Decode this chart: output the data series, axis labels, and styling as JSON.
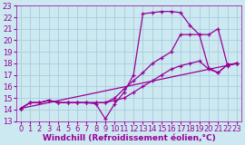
{
  "xlabel": "Windchill (Refroidissement éolien,°C)",
  "bg_color": "#cce8f0",
  "grid_color": "#aaccdd",
  "line_color": "#990099",
  "xlim": [
    -0.5,
    23.5
  ],
  "ylim": [
    13,
    23
  ],
  "xticks": [
    0,
    1,
    2,
    3,
    4,
    5,
    6,
    7,
    8,
    9,
    10,
    11,
    12,
    13,
    14,
    15,
    16,
    17,
    18,
    19,
    20,
    21,
    22,
    23
  ],
  "yticks": [
    13,
    14,
    15,
    16,
    17,
    18,
    19,
    20,
    21,
    22,
    23
  ],
  "series1_x": [
    0,
    1,
    2,
    3,
    4,
    5,
    6,
    7,
    8,
    9,
    10,
    11,
    12,
    13,
    14,
    15,
    16,
    17,
    18,
    19,
    20,
    21,
    22,
    23
  ],
  "series1_y": [
    14.1,
    14.6,
    14.6,
    14.8,
    14.6,
    14.6,
    14.6,
    14.6,
    14.5,
    13.2,
    14.5,
    15.5,
    17.0,
    22.3,
    22.4,
    22.5,
    22.5,
    22.4,
    21.3,
    20.5,
    17.6,
    17.2,
    17.9,
    18.0
  ],
  "series2_x": [
    0,
    1,
    2,
    3,
    4,
    5,
    6,
    7,
    8,
    9,
    10,
    11,
    12,
    13,
    14,
    15,
    16,
    17,
    18,
    19,
    20,
    21,
    22,
    23
  ],
  "series2_y": [
    14.1,
    14.6,
    14.6,
    14.8,
    14.6,
    14.6,
    14.6,
    14.6,
    14.6,
    14.6,
    15.0,
    15.8,
    16.5,
    17.2,
    18.0,
    18.5,
    19.0,
    20.5,
    20.5,
    20.5,
    20.5,
    21.0,
    17.8,
    18.0
  ],
  "series3_x": [
    0,
    1,
    2,
    3,
    4,
    5,
    6,
    7,
    8,
    9,
    10,
    11,
    12,
    13,
    14,
    15,
    16,
    17,
    18,
    19,
    20,
    21,
    22,
    23
  ],
  "series3_y": [
    14.1,
    14.6,
    14.6,
    14.8,
    14.6,
    14.6,
    14.6,
    14.6,
    14.6,
    14.6,
    14.8,
    15.0,
    15.5,
    16.0,
    16.5,
    17.0,
    17.5,
    17.8,
    18.0,
    18.2,
    17.5,
    17.2,
    17.9,
    18.0
  ],
  "series4_x": [
    0,
    23
  ],
  "series4_y": [
    14.1,
    18.0
  ],
  "font_color": "#990099",
  "font_size_label": 6.5,
  "font_size_tick": 6
}
